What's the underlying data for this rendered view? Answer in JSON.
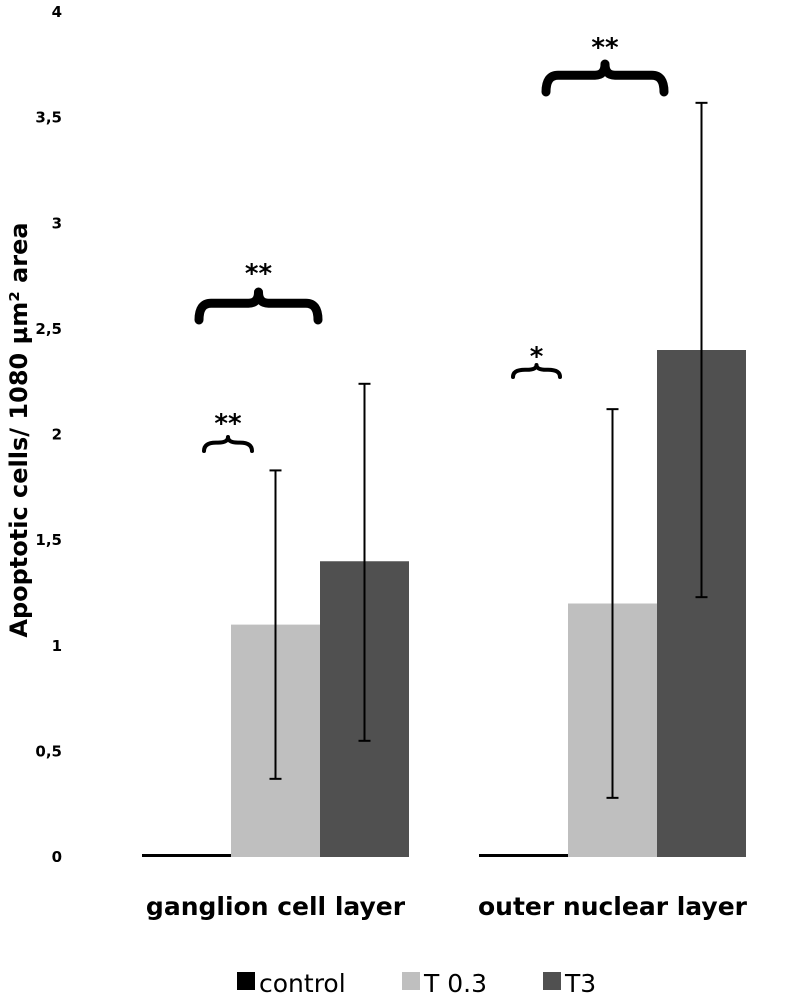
{
  "chart_data": {
    "type": "bar",
    "title": "",
    "xlabel": "",
    "ylabel": "Apoptotic cells/ 1080 µm² area",
    "ylim": [
      0,
      4
    ],
    "yticks": [
      "0",
      "0,5",
      "1",
      "1,5",
      "2",
      "2,5",
      "3",
      "3,5",
      "4"
    ],
    "categories": [
      "ganglion cell layer",
      "outer nuclear layer"
    ],
    "series": [
      {
        "name": "control",
        "color": "#000000",
        "values": [
          0,
          0
        ],
        "err_low": [
          null,
          null
        ],
        "err_high": [
          null,
          null
        ]
      },
      {
        "name": "T 0.3",
        "color": "#bfbfbf",
        "values": [
          1.1,
          1.2
        ],
        "err_low": [
          0.37,
          0.28
        ],
        "err_high": [
          1.83,
          2.12
        ]
      },
      {
        "name": "T3",
        "color": "#505050",
        "values": [
          1.4,
          2.4
        ],
        "err_low": [
          0.55,
          1.23
        ],
        "err_high": [
          2.24,
          3.57
        ]
      }
    ],
    "annotations": [
      {
        "text": "**",
        "category": "ganglion cell layer",
        "compares": "control vs T 0.3"
      },
      {
        "text": "**",
        "category": "ganglion cell layer",
        "compares": "control vs T3"
      },
      {
        "text": "*",
        "category": "outer nuclear layer",
        "compares": "control vs T 0.3"
      },
      {
        "text": "**",
        "category": "outer nuclear layer",
        "compares": "control vs T3"
      }
    ],
    "legend": "bottom",
    "grid": false
  }
}
